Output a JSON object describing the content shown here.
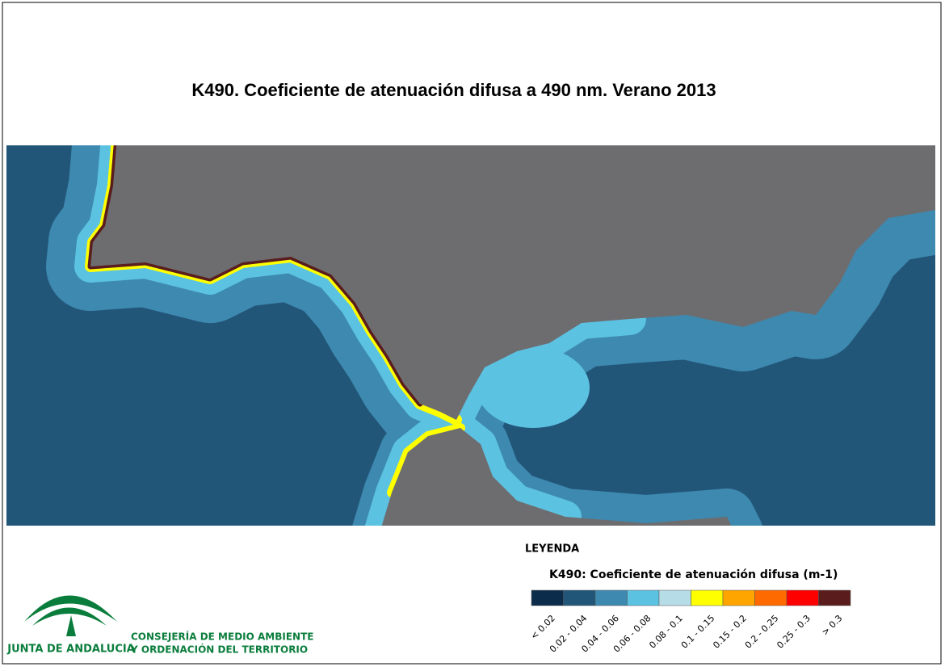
{
  "title": "K490. Coeficiente de atenuación difusa a 490 nm. Verano 2013",
  "legend": {
    "heading": "LEYENDA",
    "title": "K490: Coeficiente de atenuación difusa (m-1)",
    "classes": [
      {
        "label": "< 0.02",
        "color": "#0b2c4b"
      },
      {
        "label": "0.02 - 0.04",
        "color": "#225679"
      },
      {
        "label": "0.04 - 0.06",
        "color": "#3d89af"
      },
      {
        "label": "0.06 - 0.08",
        "color": "#5cc2e2"
      },
      {
        "label": "0.08 - 0.1",
        "color": "#b6dce8"
      },
      {
        "label": "0.1 - 0.15",
        "color": "#ffff00"
      },
      {
        "label": "0.15 - 0.2",
        "color": "#ffa500"
      },
      {
        "label": "0.2 - 0.25",
        "color": "#ff6a00"
      },
      {
        "label": "0.25 - 0.3",
        "color": "#ff0000"
      },
      {
        "label": "> 0.3",
        "color": "#5a1c1c"
      }
    ]
  },
  "logo": {
    "name": "JUNTA DE ANDALUCIA",
    "line1": "CONSEJERÍA DE MEDIO AMBIENTE",
    "line2": "Y ORDENACIÓN DEL TERRITORIO"
  }
}
